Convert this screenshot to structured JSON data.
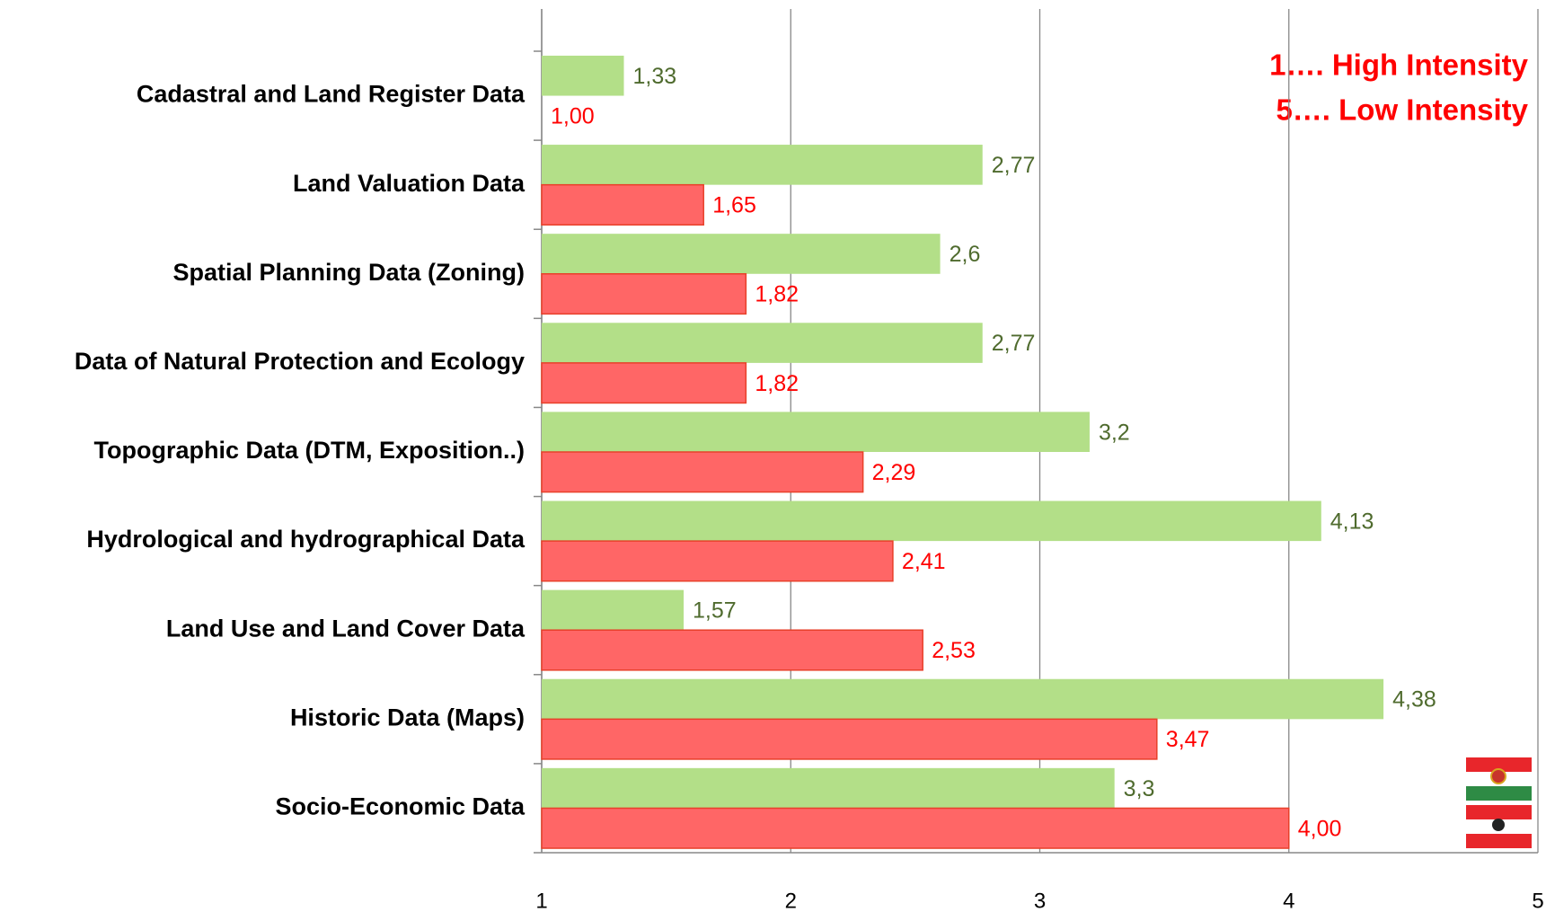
{
  "chart_data": {
    "type": "bar",
    "orientation": "horizontal",
    "categories": [
      "Cadastral and Land Register Data",
      "Land Valuation Data",
      "Spatial Planning Data (Zoning)",
      "Data of Natural Protection and Ecology",
      "Topographic Data (DTM, Exposition..)",
      "Hydrological and hydrographical Data",
      "Land Use and Land Cover Data",
      "Historic Data (Maps)",
      "Socio-Economic Data"
    ],
    "series": [
      {
        "color": "#b3df88",
        "label_color": "#4f6b2e",
        "values": [
          1.33,
          2.77,
          2.6,
          2.77,
          3.2,
          4.13,
          1.57,
          4.38,
          3.3
        ],
        "value_labels": [
          "1,33",
          "2,77",
          "2,6",
          "2,77",
          "3,2",
          "4,13",
          "1,57",
          "4,38",
          "3,3"
        ]
      },
      {
        "color": "#ff6666",
        "label_color": "#ff0000",
        "values": [
          1.0,
          1.65,
          1.82,
          1.82,
          2.29,
          2.41,
          2.53,
          3.47,
          4.0
        ],
        "value_labels": [
          "1,00",
          "1,65",
          "1,82",
          "1,82",
          "2,29",
          "2,41",
          "2,53",
          "3,47",
          "4,00"
        ]
      }
    ],
    "xlim": [
      1,
      5
    ],
    "xticks": [
      1,
      2,
      3,
      4,
      5
    ],
    "grid": true,
    "annotations": [
      "1…. High Intensity",
      "5….  Low Intensity"
    ]
  }
}
